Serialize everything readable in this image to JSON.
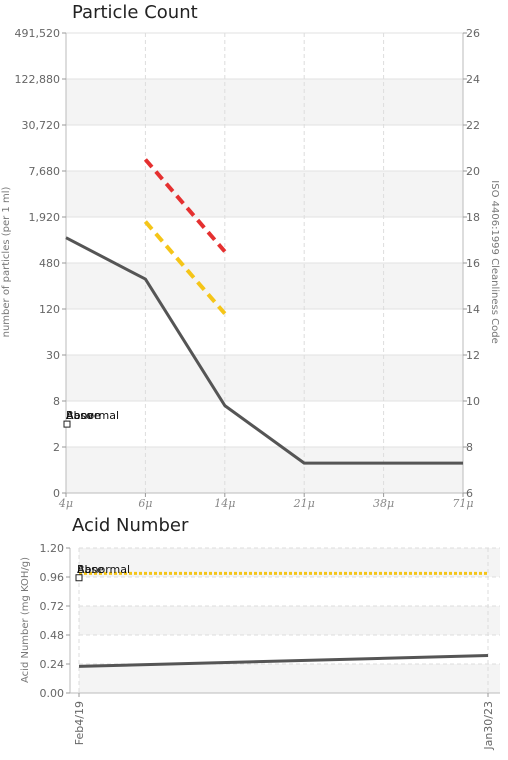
{
  "chart_data": [
    {
      "type": "line",
      "title": "Particle Count",
      "xlabel": "",
      "ylabel": "number of particles (per 1 ml)",
      "y2label": "ISO 4406:1999 Cleanliness Code",
      "categories": [
        "4μ",
        "6μ",
        "14μ",
        "21μ",
        "38μ",
        "71μ"
      ],
      "y_ticks": [
        "0",
        "2",
        "8",
        "30",
        "120",
        "480",
        "1,920",
        "7,680",
        "30,720",
        "122,880",
        "491,520"
      ],
      "y2_ticks": [
        "6",
        "8",
        "10",
        "12",
        "14",
        "16",
        "18",
        "20",
        "22",
        "24",
        "26"
      ],
      "y_scale": "iso-code",
      "y2lim": [
        6,
        26
      ],
      "grid": true,
      "series": [
        {
          "values_code": [
            17.1,
            15.3,
            9.8,
            7.3,
            7.3,
            7.3
          ],
          "color": "#555555",
          "style": "solid"
        },
        {
          "x_range": [
            "6μ",
            "14μ"
          ],
          "values_code": [
            20.5,
            16.5
          ],
          "color": "#e53030",
          "style": "dashed"
        },
        {
          "x_range": [
            "6μ",
            "14μ"
          ],
          "values_code": [
            17.8,
            13.8
          ],
          "color": "#f5c518",
          "style": "dashed"
        }
      ],
      "legend": {
        "position": "left",
        "entries": [
          "Above",
          "Base",
          "Abnormal"
        ]
      }
    },
    {
      "type": "line",
      "title": "Acid Number",
      "xlabel": "",
      "ylabel": "Acid Number (mg KOH/g)",
      "categories": [
        "Feb4/19",
        "Jan30/23"
      ],
      "y_ticks": [
        "0.00",
        "0.24",
        "0.48",
        "0.72",
        "0.96",
        "1.20"
      ],
      "ylim": [
        0,
        1.2
      ],
      "grid": true,
      "series": [
        {
          "values": [
            0.22,
            0.31
          ],
          "color": "#555555",
          "style": "solid"
        },
        {
          "values": [
            0.99,
            0.99
          ],
          "color": "#f5c518",
          "style": "dotted"
        }
      ],
      "legend": {
        "position": "left",
        "entries": [
          "Base",
          "Abnormal"
        ]
      }
    }
  ]
}
